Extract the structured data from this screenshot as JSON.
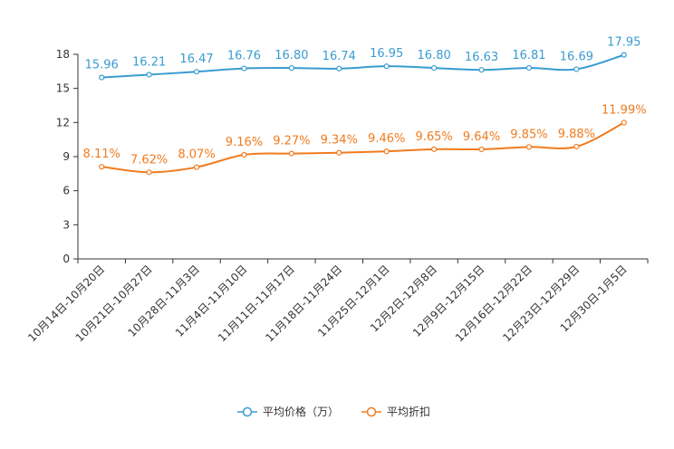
{
  "chart_data": {
    "type": "line",
    "title": "",
    "xlabel": "",
    "ylabel": "",
    "ylim": [
      0,
      18
    ],
    "yticks": [
      0,
      3,
      6,
      9,
      12,
      15,
      18
    ],
    "grid": false,
    "legend_position": "bottom-center",
    "categories": [
      "10月14日-10月20日",
      "10月21日-10月27日",
      "10月28日-11月3日",
      "11月4日-11月10日",
      "11月11日-11月17日",
      "11月18日-11月24日",
      "11月25日-12月1日",
      "12月2日-12月8日",
      "12月9日-12月15日",
      "12月16日-12月22日",
      "12月23日-12月29日",
      "12月30日-1月5日"
    ],
    "series": [
      {
        "name": "平均价格（万）",
        "color": "#3a9bd1",
        "values": [
          15.96,
          16.21,
          16.47,
          16.76,
          16.8,
          16.74,
          16.95,
          16.8,
          16.63,
          16.81,
          16.69,
          17.95
        ],
        "labels": [
          "15.96",
          "16.21",
          "16.47",
          "16.76",
          "16.80",
          "16.74",
          "16.95",
          "16.80",
          "16.63",
          "16.81",
          "16.69",
          "17.95"
        ]
      },
      {
        "name": "平均折扣",
        "color": "#f07b1e",
        "values": [
          8.11,
          7.62,
          8.07,
          9.16,
          9.27,
          9.34,
          9.46,
          9.65,
          9.64,
          9.85,
          9.88,
          11.99
        ],
        "labels": [
          "8.11%",
          "7.62%",
          "8.07%",
          "9.16%",
          "9.27%",
          "9.34%",
          "9.46%",
          "9.65%",
          "9.64%",
          "9.85%",
          "9.88%",
          "11.99%"
        ]
      }
    ]
  }
}
